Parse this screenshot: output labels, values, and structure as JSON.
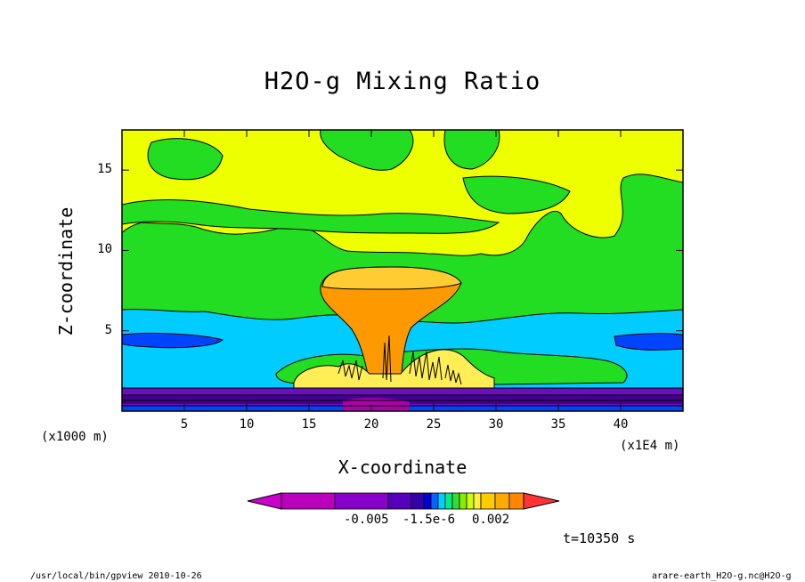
{
  "chart_data": {
    "type": "heatmap",
    "title": "H2O-g Mixing Ratio",
    "xlabel": "X-coordinate",
    "ylabel": "Z-coordinate",
    "xunit": "(x1E4 m)",
    "yunit": "(x1000 m)",
    "xlim": [
      0,
      45
    ],
    "ylim": [
      0,
      17.5
    ],
    "xticks": [
      "5",
      "10",
      "15",
      "20",
      "25",
      "30",
      "35",
      "40"
    ],
    "yticks": [
      "5",
      "10",
      "15"
    ],
    "colorbar_labels": [
      "-0.005",
      "-1.5e-6",
      "0.002"
    ],
    "colorbar_colors": [
      "#cc00cc",
      "#bb00bb",
      "#8800cc",
      "#5500bb",
      "#3300aa",
      "#0000dd",
      "#0066ff",
      "#00ccff",
      "#00ee88",
      "#33dd33",
      "#88ee00",
      "#ccff00",
      "#ffee44",
      "#ffcc00",
      "#ffaa00",
      "#ff8800",
      "#ff3333"
    ],
    "time_label": "t=10350 s"
  },
  "colors": {
    "green": "#22dd22",
    "yellow": "#eeff00",
    "lightyellow": "#ffee55",
    "orange": "#ff9900",
    "lightorange": "#ffbb22",
    "cyan": "#00ccff",
    "blue": "#0044ff",
    "purple": "#6611bb",
    "darkpurple": "#440088"
  },
  "footer": {
    "left": "/usr/local/bin/gpview  2010-10-26",
    "right": "arare-earth_H2O-g.nc@H2O-g"
  }
}
